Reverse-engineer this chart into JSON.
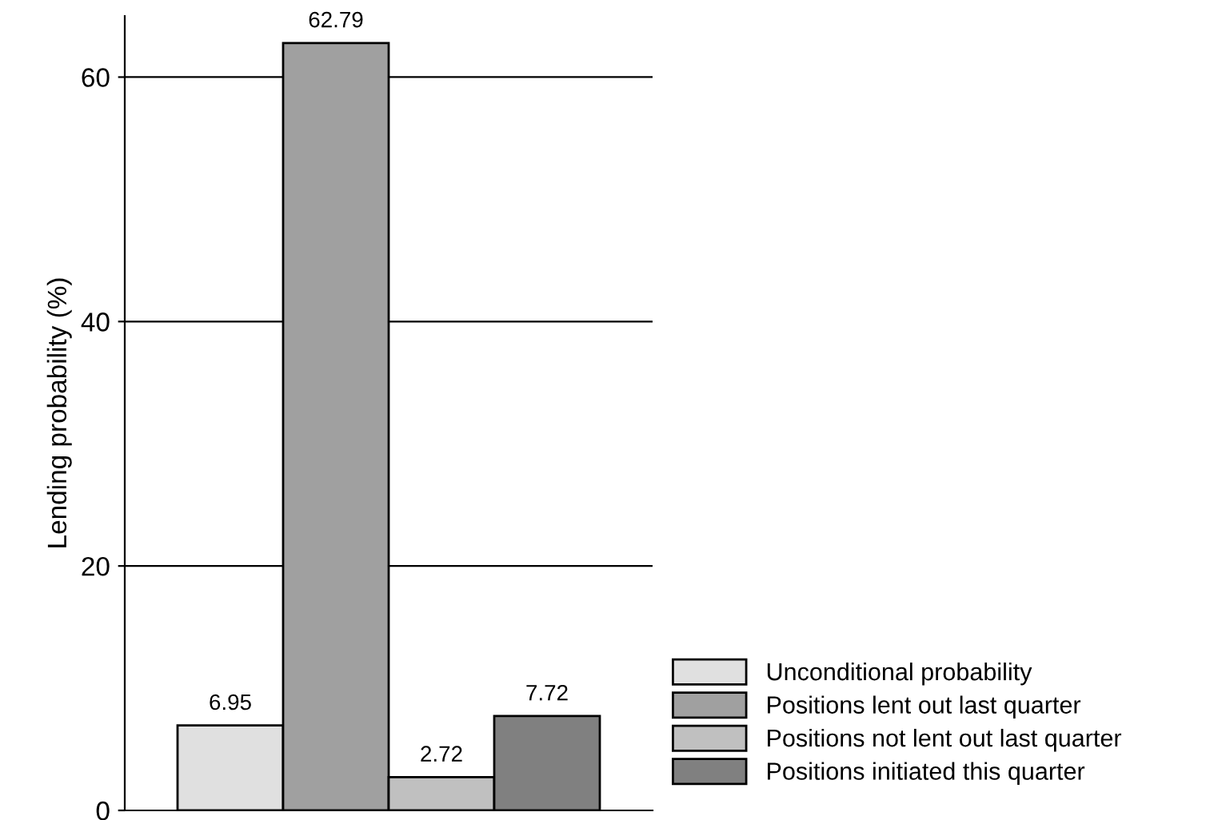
{
  "chart_data": {
    "type": "bar",
    "ylabel": "Lending probability (%)",
    "categories": [
      null
    ],
    "series": [
      {
        "name": "Unconditional probability",
        "color": "#e0e0e0",
        "values": [
          6.95
        ]
      },
      {
        "name": "Positions lent out last quarter",
        "color": "#a0a0a0",
        "values": [
          62.79
        ]
      },
      {
        "name": "Positions not lent out last quarter",
        "color": "#c0c0c0",
        "values": [
          2.72
        ]
      },
      {
        "name": "Positions initiated this quarter",
        "color": "#808080",
        "values": [
          7.72
        ]
      }
    ],
    "ylim": [
      0,
      65
    ],
    "yticks": [
      0,
      20,
      40,
      60
    ],
    "grid": "y",
    "legend": "bottom right",
    "data_labels": true
  }
}
